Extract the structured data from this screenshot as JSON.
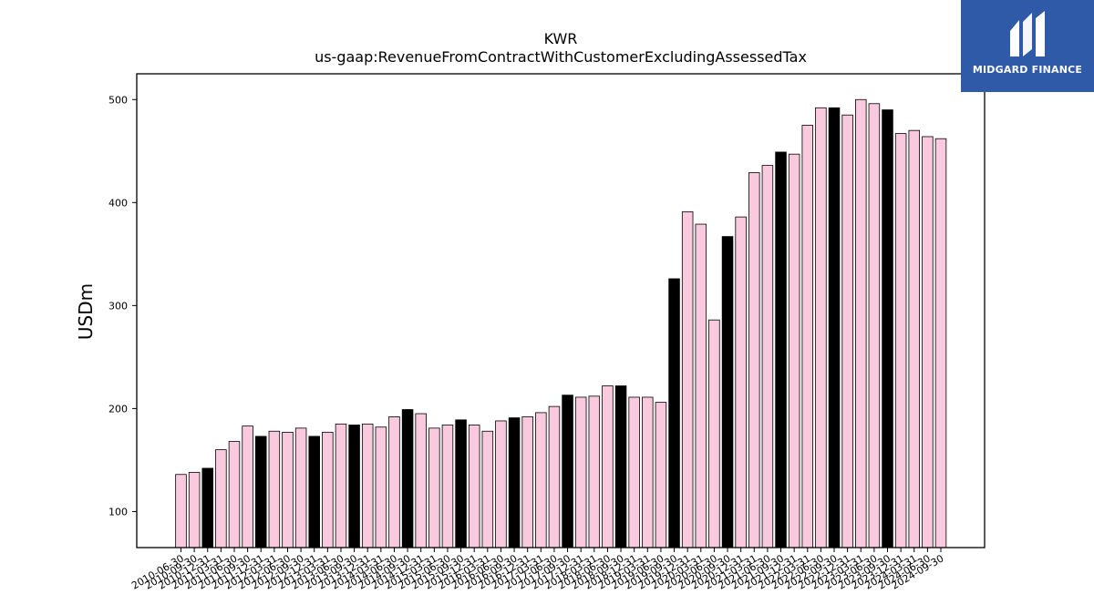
{
  "brand": {
    "name": "MIDGARD FINANCE",
    "logo_icon": "midgard-m-icon",
    "background": "#2f5aa8"
  },
  "chart_data": {
    "type": "bar",
    "title": "KWR",
    "subtitle": "us-gaap:RevenueFromContractWithCustomerExcludingAssessedTax",
    "ylabel": "USDm",
    "xlabel": "",
    "ylim": [
      65,
      525
    ],
    "yticks": [
      100,
      200,
      300,
      400,
      500
    ],
    "grid": false,
    "colors": {
      "quarter": "#f9c9de",
      "fiscal_year_end": "#000000",
      "edge": "#000000"
    },
    "categories": [
      "2010-06-30",
      "2010-09-30",
      "2010-12-31",
      "2011-03-31",
      "2011-06-30",
      "2011-09-30",
      "2011-12-31",
      "2012-03-31",
      "2012-06-30",
      "2012-09-30",
      "2012-12-31",
      "2013-03-31",
      "2013-06-30",
      "2013-09-30",
      "2013-12-31",
      "2014-03-31",
      "2014-06-30",
      "2014-09-30",
      "2014-12-31",
      "2015-03-31",
      "2015-06-30",
      "2015-09-30",
      "2015-12-31",
      "2016-03-31",
      "2016-06-30",
      "2016-09-30",
      "2016-12-31",
      "2017-03-31",
      "2017-06-30",
      "2017-09-30",
      "2017-12-31",
      "2018-03-31",
      "2018-06-30",
      "2018-09-30",
      "2018-12-31",
      "2019-03-31",
      "2019-06-30",
      "2019-09-30",
      "2019-12-31",
      "2020-03-31",
      "2020-06-30",
      "2020-09-30",
      "2020-12-31",
      "2021-03-31",
      "2021-06-30",
      "2021-09-30",
      "2021-12-31",
      "2022-03-31",
      "2022-06-30",
      "2022-09-30",
      "2022-12-31",
      "2023-03-31",
      "2023-06-30",
      "2023-09-30",
      "2023-12-31",
      "2024-03-31",
      "2024-06-30",
      "2024-09-30"
    ],
    "values": [
      136,
      138,
      142,
      160,
      168,
      183,
      173,
      178,
      177,
      181,
      173,
      177,
      185,
      184,
      185,
      182,
      192,
      199,
      195,
      181,
      184,
      189,
      184,
      178,
      188,
      191,
      192,
      196,
      202,
      213,
      211,
      212,
      222,
      222,
      211,
      211,
      206,
      326,
      391,
      379,
      286,
      367,
      386,
      429,
      436,
      449,
      447,
      475,
      492,
      492,
      485,
      500,
      496,
      490,
      467,
      470,
      464,
      462
    ],
    "year_end_flags": [
      0,
      0,
      1,
      0,
      0,
      0,
      1,
      0,
      0,
      0,
      1,
      0,
      0,
      1,
      0,
      0,
      0,
      1,
      0,
      0,
      0,
      1,
      0,
      0,
      0,
      1,
      0,
      0,
      0,
      1,
      0,
      0,
      0,
      1,
      0,
      0,
      0,
      1,
      0,
      0,
      0,
      1,
      0,
      0,
      0,
      1,
      0,
      0,
      0,
      1,
      0,
      0,
      0,
      1,
      0,
      0,
      0,
      0
    ]
  }
}
